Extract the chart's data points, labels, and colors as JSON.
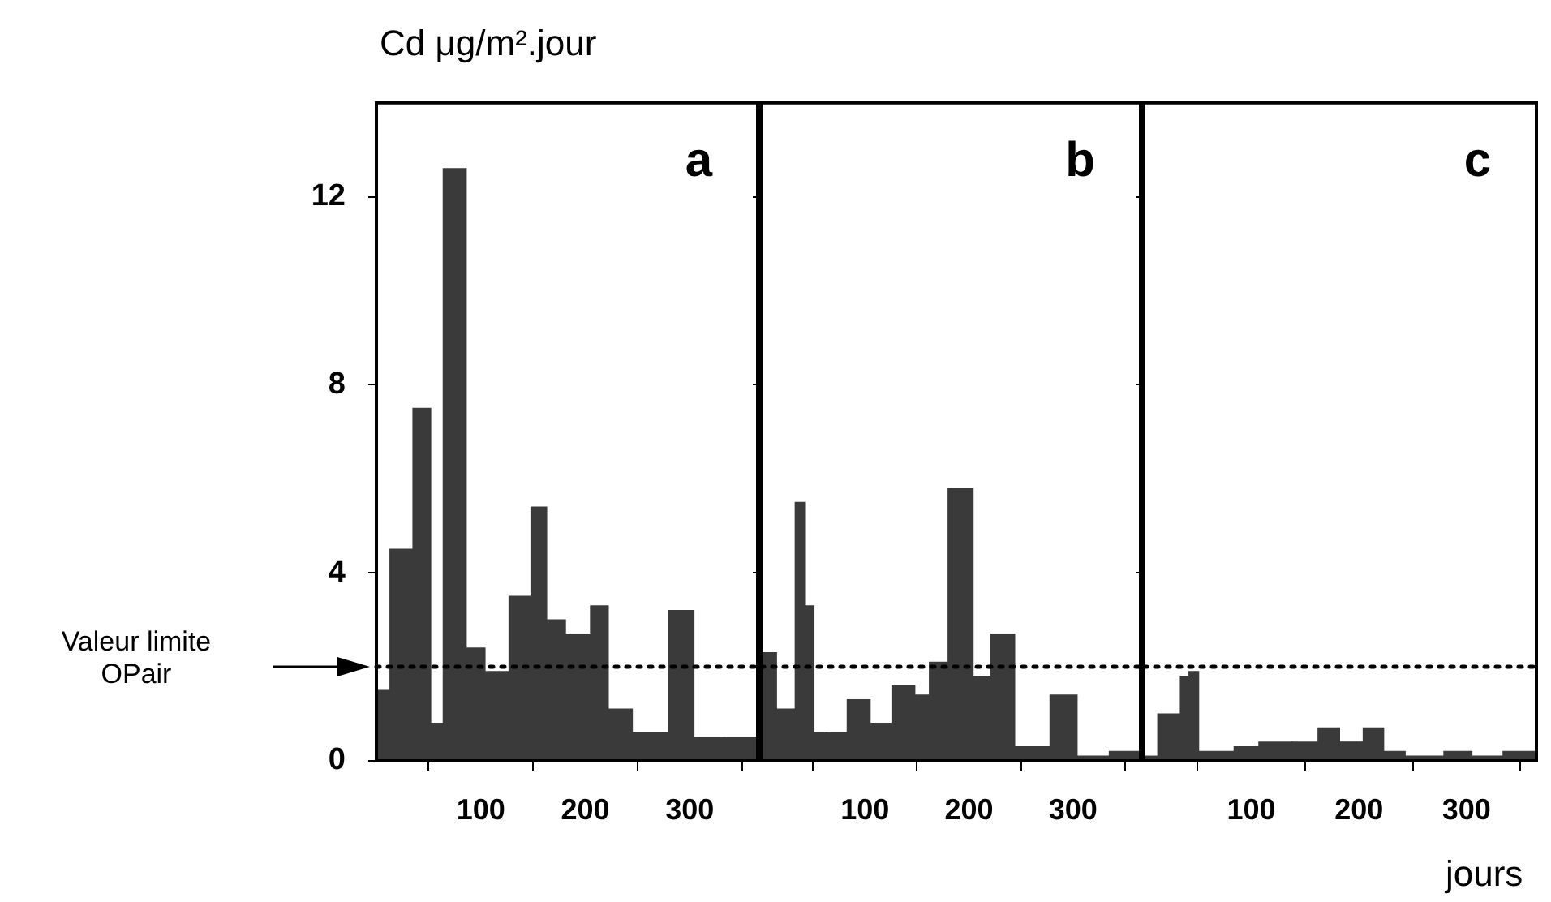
{
  "chart_data": [
    {
      "type": "histogram",
      "ylabel": "Cd μg/m².jour",
      "annotations": [
        "a"
      ],
      "color": "#3a3a3a",
      "bins": [
        0,
        13,
        35,
        52,
        64,
        86,
        104,
        127,
        148,
        163,
        181,
        205,
        222,
        245,
        280,
        304,
        333,
        363
      ],
      "values": [
        1.5,
        4.5,
        7.5,
        0.8,
        12.6,
        2.4,
        1.9,
        3.5,
        5.4,
        3.0,
        2.7,
        3.3,
        1.1,
        0.6,
        3.2,
        0.5,
        0.5
      ],
      "xlim": [
        0,
        365
      ],
      "xticks": [
        100,
        200,
        300
      ],
      "ylim": [
        0,
        14
      ],
      "yticks": [
        0,
        4,
        8,
        12
      ],
      "ref_lines": [
        {
          "axis": "y",
          "value": 2,
          "label": "Valeur limite OPair",
          "line_style": "dotted"
        }
      ]
    },
    {
      "type": "histogram",
      "annotations": [
        "b"
      ],
      "color": "#3a3a3a",
      "bins": [
        0,
        15,
        33,
        42,
        51,
        63,
        83,
        105,
        126,
        148,
        162,
        180,
        204,
        221,
        244,
        278,
        304,
        335,
        364
      ],
      "values": [
        2.3,
        1.1,
        5.5,
        3.3,
        0.6,
        0.6,
        1.3,
        0.8,
        1.6,
        1.4,
        2.1,
        5.8,
        1.8,
        2.7,
        0.3,
        1.4,
        0.1,
        0.2
      ],
      "xlim": [
        0,
        365
      ],
      "xticks": [
        100,
        200,
        300
      ],
      "ylim": [
        0,
        14
      ],
      "yticks": [
        {
          "value": 0,
          "label": null
        },
        {
          "value": 4,
          "label": null
        },
        {
          "value": 8,
          "label": null
        },
        {
          "value": 12,
          "label": null
        }
      ],
      "tick_labels": "x",
      "ref_lines": [
        {
          "axis": "y",
          "value": 2,
          "line_style": "dotted"
        }
      ]
    },
    {
      "type": "histogram",
      "xlabel": "jours",
      "annotations": [
        "c"
      ],
      "color": "#3a3a3a",
      "bins": [
        0,
        13,
        34,
        42,
        51,
        84,
        107,
        138,
        162,
        182,
        204,
        223,
        243,
        279,
        305,
        334,
        365
      ],
      "values": [
        0.1,
        1.0,
        1.8,
        1.9,
        0.2,
        0.3,
        0.4,
        0.4,
        0.7,
        0.4,
        0.7,
        0.2,
        0.1,
        0.2,
        0.1,
        0.2
      ],
      "xlim": [
        0,
        365
      ],
      "xticks": [
        100,
        200,
        300
      ],
      "ylim": [
        0,
        14
      ],
      "yticks": [
        {
          "value": 0,
          "label": null
        },
        {
          "value": 4,
          "label": null
        },
        {
          "value": 8,
          "label": null
        },
        {
          "value": 12,
          "label": null
        }
      ],
      "tick_labels": "x",
      "ref_lines": [
        {
          "axis": "y",
          "value": 2,
          "line_style": "dotted"
        }
      ]
    }
  ]
}
